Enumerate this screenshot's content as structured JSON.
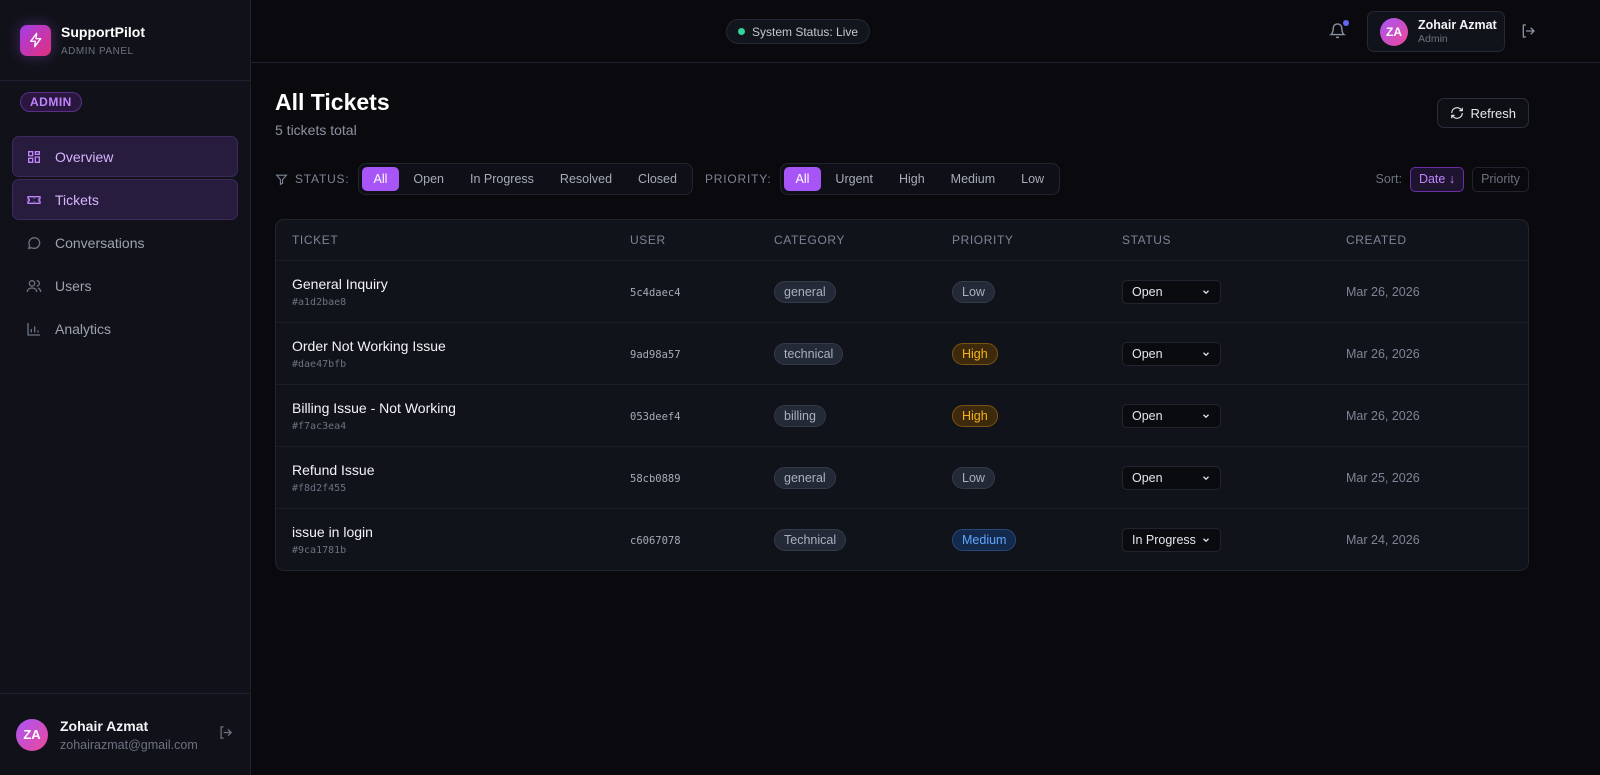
{
  "brand": {
    "name": "SupportPilot",
    "subtitle": "ADMIN PANEL"
  },
  "role_badge": "ADMIN",
  "sidebar": {
    "items": [
      {
        "label": "Overview",
        "icon": "grid-icon",
        "active": true
      },
      {
        "label": "Tickets",
        "icon": "ticket-icon",
        "active": true
      },
      {
        "label": "Conversations",
        "icon": "chat-icon",
        "active": false
      },
      {
        "label": "Users",
        "icon": "users-icon",
        "active": false
      },
      {
        "label": "Analytics",
        "icon": "bar-chart-icon",
        "active": false
      }
    ],
    "user": {
      "initials": "ZA",
      "name": "Zohair Azmat",
      "email": "zohairazmat@gmail.com"
    }
  },
  "topbar": {
    "status": "System Status: Live",
    "user": {
      "initials": "ZA",
      "name": "Zohair Azmat",
      "role": "Admin"
    }
  },
  "page": {
    "title": "All Tickets",
    "subtitle": "5 tickets total",
    "refresh_label": "Refresh"
  },
  "filters": {
    "status_label": "STATUS:",
    "status_options": [
      "All",
      "Open",
      "In Progress",
      "Resolved",
      "Closed"
    ],
    "status_selected": "All",
    "priority_label": "PRIORITY:",
    "priority_options": [
      "All",
      "Urgent",
      "High",
      "Medium",
      "Low"
    ],
    "priority_selected": "All",
    "sort_label": "Sort:",
    "sort_options": [
      "Date ↓",
      "Priority"
    ],
    "sort_selected": "Date ↓"
  },
  "colors": {
    "accent": "#a855f7",
    "high": "#f5b417",
    "medium": "#60a5fa",
    "live": "#34d399"
  },
  "table": {
    "columns": [
      "TICKET",
      "USER",
      "CATEGORY",
      "PRIORITY",
      "STATUS",
      "CREATED"
    ],
    "rows": [
      {
        "title": "General Inquiry",
        "id": "#a1d2bae8",
        "user": "5c4daec4",
        "category": "general",
        "priority": "Low",
        "status": "Open",
        "created": "Mar 26, 2026"
      },
      {
        "title": "Order Not Working Issue",
        "id": "#dae47bfb",
        "user": "9ad98a57",
        "category": "technical",
        "priority": "High",
        "status": "Open",
        "created": "Mar 26, 2026"
      },
      {
        "title": "Billing Issue - Not Working",
        "id": "#f7ac3ea4",
        "user": "053deef4",
        "category": "billing",
        "priority": "High",
        "status": "Open",
        "created": "Mar 26, 2026"
      },
      {
        "title": "Refund Issue",
        "id": "#f8d2f455",
        "user": "58cb0889",
        "category": "general",
        "priority": "Low",
        "status": "Open",
        "created": "Mar 25, 2026"
      },
      {
        "title": "issue in login",
        "id": "#9ca1781b",
        "user": "c6067078",
        "category": "Technical",
        "priority": "Medium",
        "status": "In Progress",
        "created": "Mar 24, 2026"
      }
    ]
  }
}
